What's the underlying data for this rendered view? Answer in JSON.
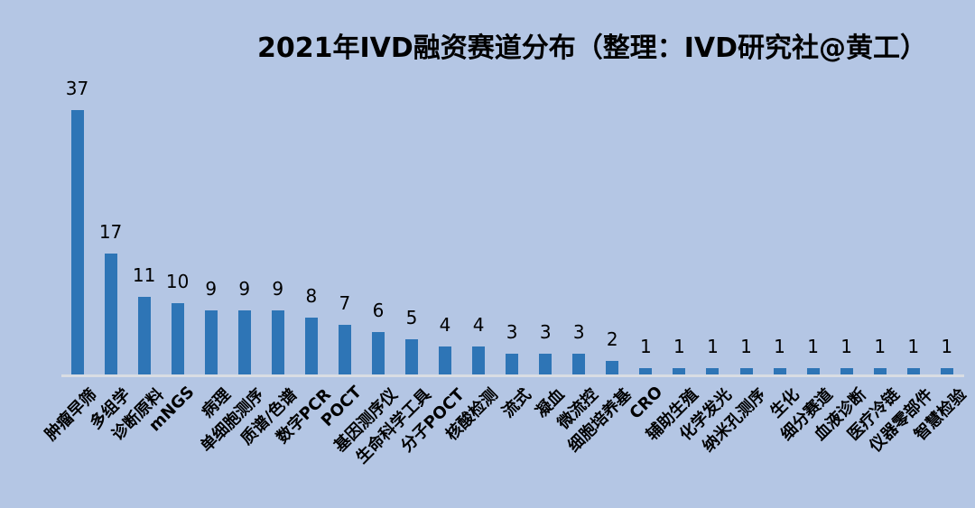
{
  "chart_data": {
    "type": "bar",
    "title": "2021年IVD融资赛道分布（整理：IVD研究社@黄工）",
    "categories": [
      "肿瘤早筛",
      "多组学",
      "诊断原料",
      "mNGS",
      "病理",
      "单细胞测序",
      "质谱/色谱",
      "数字PCR",
      "POCT",
      "基因测序仪",
      "生命科学工具",
      "分子POCT",
      "核酸检测",
      "流式",
      "凝血",
      "微流控",
      "细胞培养基",
      "CRO",
      "辅助生殖",
      "化学发光",
      "纳米孔测序",
      "生化",
      "细分赛道",
      "血液诊断",
      "医疗冷链",
      "仪器零部件",
      "智慧检验"
    ],
    "values": [
      37,
      17,
      11,
      10,
      9,
      9,
      9,
      8,
      7,
      6,
      5,
      4,
      4,
      3,
      3,
      3,
      2,
      1,
      1,
      1,
      1,
      1,
      1,
      1,
      1,
      1,
      1
    ],
    "xlabel": "",
    "ylabel": "",
    "ylim": [
      0,
      40
    ],
    "grid": false,
    "legend": "none",
    "data_labels": true,
    "x_tick_rotation_deg": 45
  },
  "colors": {
    "background": "#b4c6e4",
    "bar": "#2e75b6",
    "axis_line": "#d9dde3",
    "text": "#000000"
  }
}
